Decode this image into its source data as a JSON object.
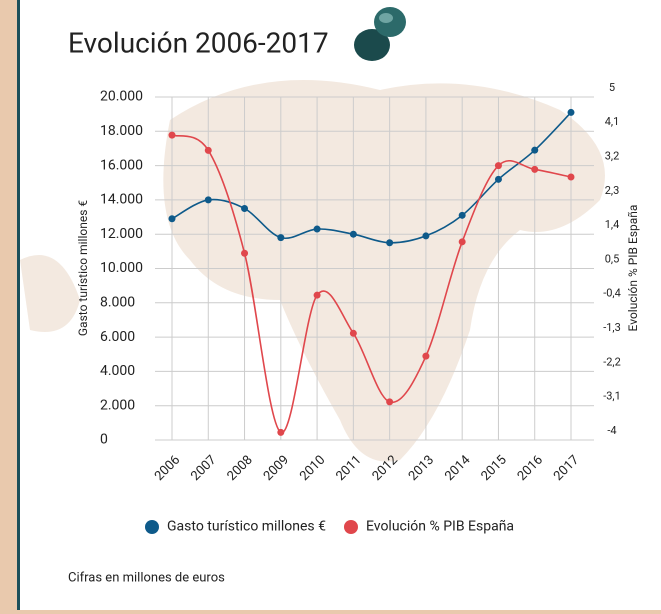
{
  "chart_data": {
    "type": "line",
    "title": "Evolución 2006-2017",
    "y_label": "Gasto turístico millones €",
    "y2_label": "Evolución % PIB España",
    "caption": "Cifras en millones de euros",
    "categories": [
      "2006",
      "2007",
      "2008",
      "2009",
      "2010",
      "2011",
      "2012",
      "2013",
      "2014",
      "2015",
      "2016",
      "2017"
    ],
    "series": [
      {
        "name": "Gasto turístico millones €",
        "color": "#0e5a8a",
        "values": [
          12900,
          14000,
          13500,
          11800,
          12300,
          12000,
          11500,
          11900,
          13100,
          15200,
          16900,
          19100
        ]
      },
      {
        "name": "Evolución % PIB España",
        "color": "#e0474c",
        "axis": "y2",
        "values": [
          4.0,
          3.6,
          0.9,
          -3.8,
          -0.2,
          -1.2,
          -3.0,
          -1.8,
          1.2,
          3.2,
          3.1,
          2.9
        ]
      }
    ],
    "ylim": [
      0,
      20000
    ],
    "yticks": [
      0,
      {
        "value": 2000,
        "label": "2.000"
      },
      {
        "value": 4000,
        "label": "4.000"
      },
      {
        "value": 6000,
        "label": "6.000"
      },
      {
        "value": 8000,
        "label": "8.000"
      },
      {
        "value": 10000,
        "label": "10.000"
      },
      {
        "value": 12000,
        "label": "12.000"
      },
      {
        "value": 14000,
        "label": "14.000"
      },
      {
        "value": 16000,
        "label": "16.000"
      },
      {
        "value": 18000,
        "label": "18.000"
      },
      {
        "value": 20000,
        "label": "20.000"
      }
    ],
    "y2lim": [
      -4,
      5
    ],
    "y2ticks": [
      -4,
      {
        "value": -3.1,
        "label": "-3,1"
      },
      {
        "value": -2.2,
        "label": "-2,2"
      },
      {
        "value": -1.3,
        "label": "-1,3"
      },
      {
        "value": -0.4,
        "label": "-0,4"
      },
      {
        "value": 0.5,
        "label": "0,5"
      },
      {
        "value": 1.4,
        "label": "1,4"
      },
      {
        "value": 2.3,
        "label": "2,3"
      },
      {
        "value": 3.2,
        "label": "3,2"
      },
      {
        "value": 4.1,
        "label": "4,1"
      },
      5
    ],
    "grid": true
  }
}
